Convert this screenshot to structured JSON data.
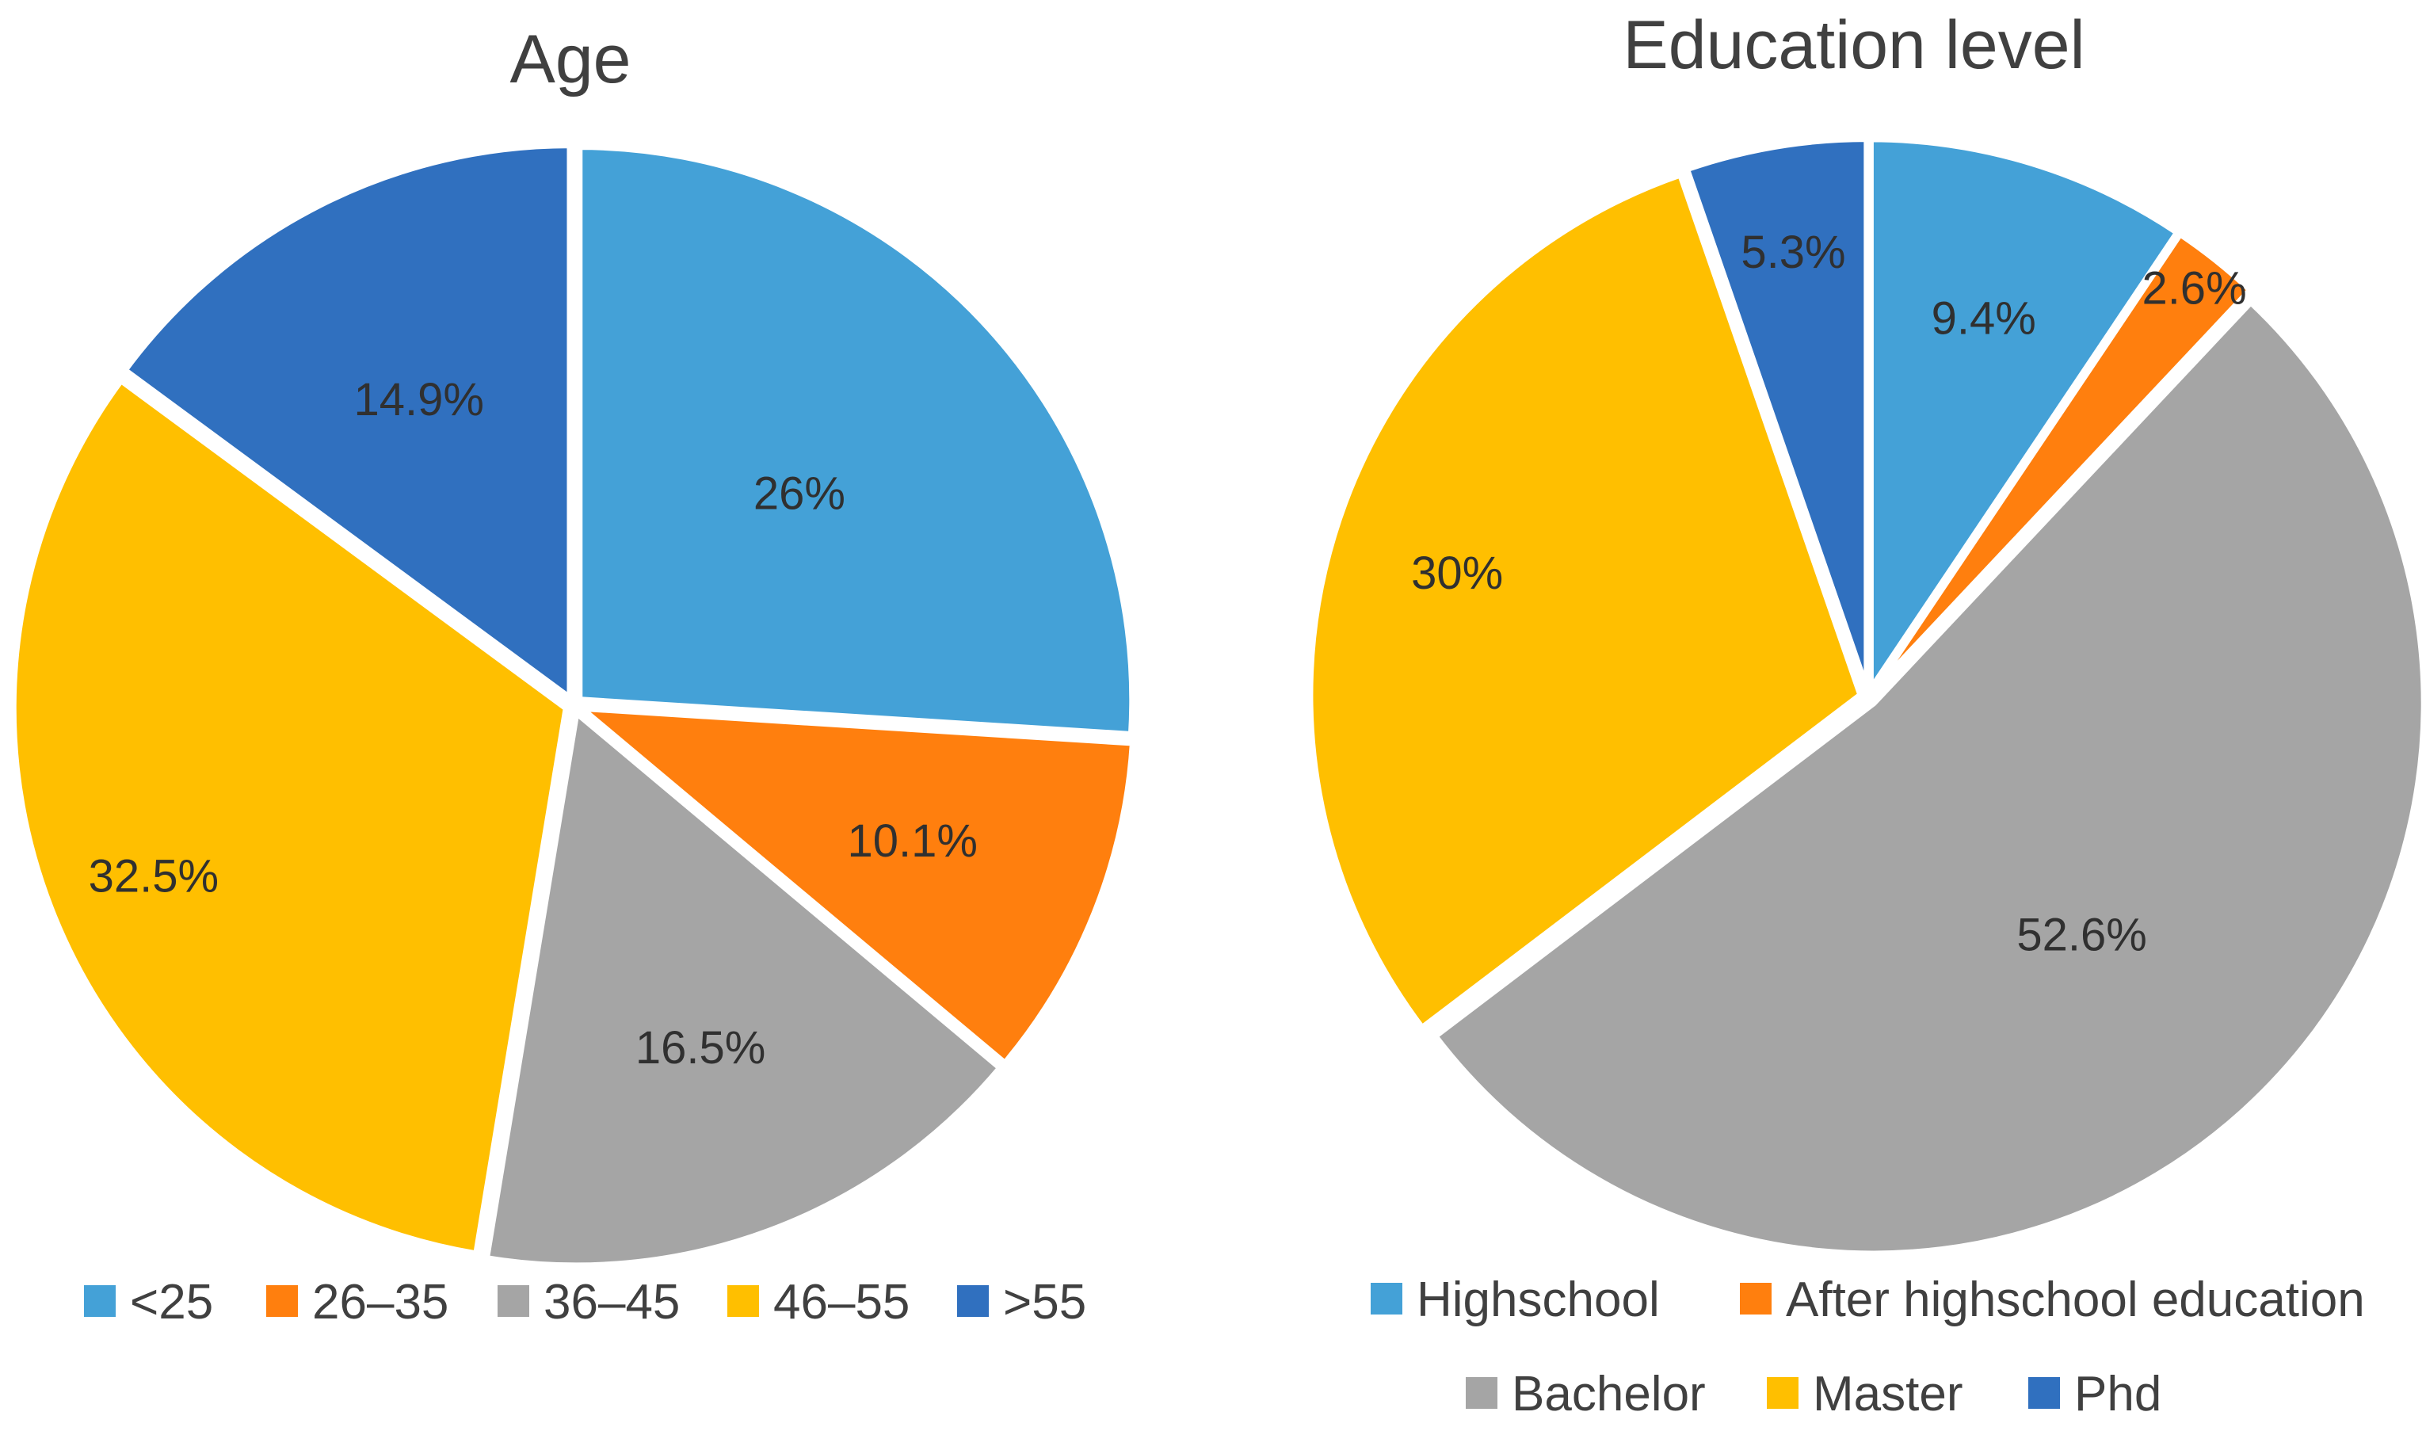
{
  "chart_data": [
    {
      "type": "pie",
      "title": "Age",
      "categories": [
        "<25",
        "26–35",
        "36–45",
        "46–55",
        ">55"
      ],
      "values": [
        26,
        10.1,
        16.5,
        32.5,
        14.9
      ],
      "data_labels": [
        "26%",
        "10.1%",
        "16.5%",
        "32.5%",
        "14.9%"
      ],
      "colors": [
        "#44A1D7",
        "#FF7F0E",
        "#A5A5A5",
        "#FFBF00",
        "#3070BF"
      ],
      "start_angle": "12 o'clock",
      "direction": "clockwise",
      "legend_position": "bottom"
    },
    {
      "type": "pie",
      "title": "Education level",
      "categories": [
        "Highschool",
        "After highschool education",
        "Bachelor",
        "Master",
        "Phd"
      ],
      "values": [
        9.4,
        2.6,
        52.6,
        30,
        5.3
      ],
      "data_labels": [
        "9.4%",
        "2.6%",
        "52.6%",
        "30%",
        "5.3%"
      ],
      "colors": [
        "#44A1D7",
        "#FF7F0E",
        "#A5A5A5",
        "#FFBF00",
        "#3070BF"
      ],
      "start_angle": "12 o'clock",
      "direction": "clockwise",
      "legend_position": "bottom"
    }
  ]
}
